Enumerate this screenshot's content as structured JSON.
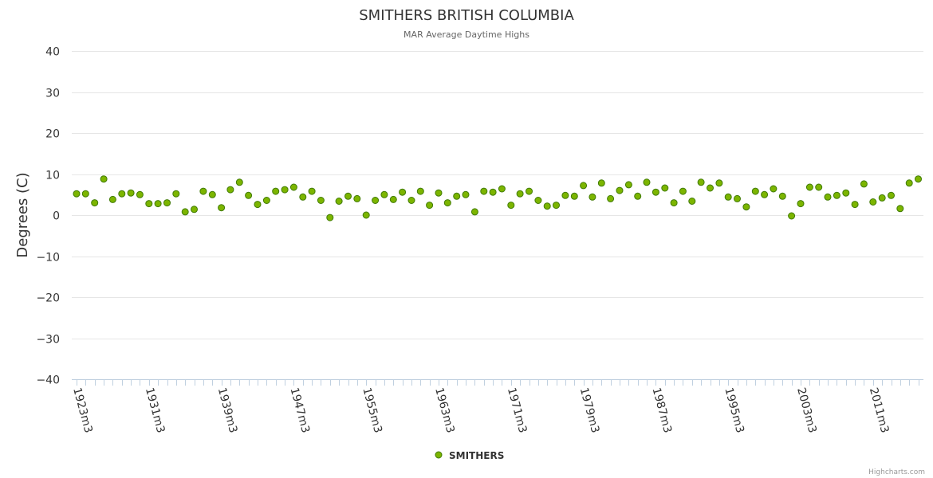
{
  "chart_data": {
    "type": "scatter",
    "title": "SMITHERS BRITISH COLUMBIA",
    "subtitle": "MAR Average Daytime Highs",
    "ylabel": "Degrees (C)",
    "xlabel": "",
    "ylim": [
      -40,
      40
    ],
    "yticks": [
      40,
      30,
      20,
      10,
      0,
      -10,
      -20,
      -30,
      -40
    ],
    "ytick_labels": [
      "40",
      "30",
      "20",
      "10",
      "0",
      "−10",
      "−20",
      "−30",
      "−40"
    ],
    "x_start_year": 1923,
    "x_end_year": 2017,
    "xtick_labels": [
      "1923m3",
      "1931m3",
      "1939m3",
      "1947m3",
      "1955m3",
      "1963m3",
      "1971m3",
      "1979m3",
      "1987m3",
      "1995m3",
      "2003m3",
      "2011m3"
    ],
    "xtick_every": 8,
    "grid": true,
    "legend_position": "bottom-center",
    "marker_color": "#7cb500",
    "marker_stroke": "#3f7a00",
    "series": [
      {
        "name": "SMITHERS",
        "values": [
          5.2,
          5.2,
          3.0,
          8.8,
          3.8,
          5.2,
          5.4,
          5.0,
          2.8,
          2.8,
          3.0,
          5.2,
          0.8,
          1.4,
          5.8,
          5.0,
          1.8,
          6.2,
          8.0,
          4.8,
          2.6,
          3.6,
          5.8,
          6.2,
          6.8,
          4.4,
          5.8,
          3.6,
          -0.6,
          3.4,
          4.6,
          4.0,
          0.0,
          3.6,
          5.0,
          3.8,
          5.6,
          3.6,
          5.8,
          2.4,
          5.4,
          3.0,
          4.6,
          5.0,
          0.8,
          5.8,
          5.6,
          6.4,
          2.4,
          5.2,
          5.8,
          3.6,
          2.2,
          2.4,
          4.8,
          4.6,
          7.2,
          4.4,
          7.8,
          4.0,
          6.0,
          7.4,
          4.6,
          8.0,
          5.6,
          6.6,
          3.0,
          5.8,
          3.4,
          8.0,
          6.6,
          7.8,
          4.4,
          4.0,
          2.0,
          5.8,
          5.0,
          6.4,
          4.6,
          -0.2,
          2.8,
          6.8,
          6.8,
          4.4,
          4.8,
          5.4,
          2.6,
          7.6,
          3.2,
          4.2,
          4.8,
          1.6,
          7.8,
          8.8
        ]
      }
    ],
    "credits": "Highcharts.com"
  }
}
